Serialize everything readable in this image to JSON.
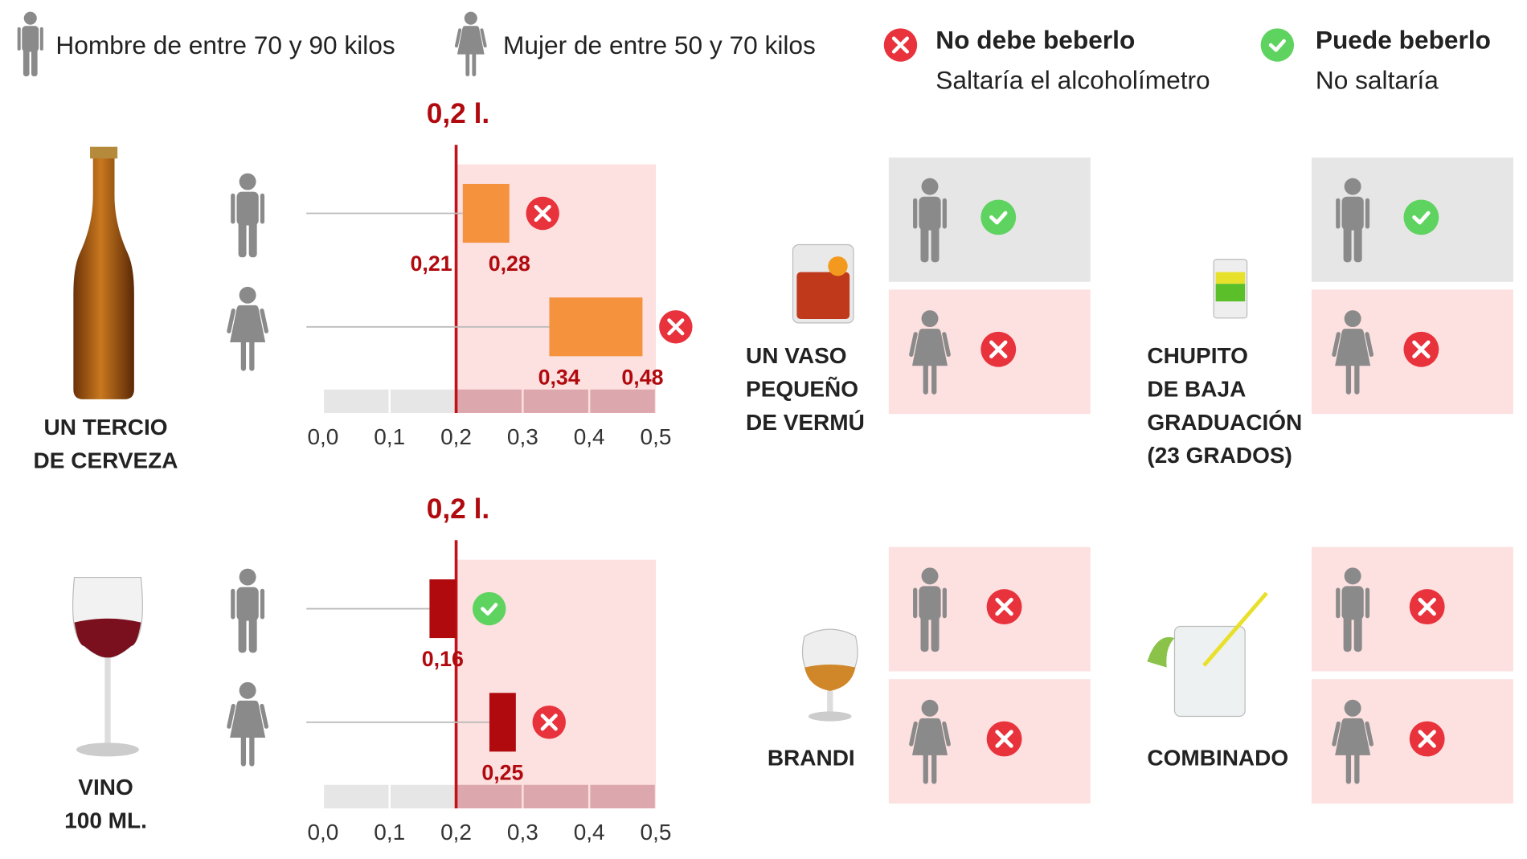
{
  "legend": {
    "man": "Hombre de entre 70 y 90 kilos",
    "woman": "Mujer de entre 50 y 70 kilos",
    "no": {
      "title": "No debe beberlo",
      "text": "Saltaría el alcoholímetro"
    },
    "yes": {
      "title": "Puede beberlo",
      "text": "No saltaría"
    }
  },
  "verdict_colors": {
    "no": "#e8323c",
    "yes": "#5fd35f"
  },
  "chart_data": [
    {
      "type": "range_bar",
      "drink": [
        "UN TERCIO",
        "DE CERVEZA"
      ],
      "limit": 0.2,
      "limit_label": "0,2 l.",
      "color": "#f5923e",
      "xlim": [
        0,
        0.5
      ],
      "xticks": [
        {
          "value": 0,
          "label": "0,0"
        },
        {
          "value": 0.1,
          "label": "0,1"
        },
        {
          "value": 0.2,
          "label": "0,2"
        },
        {
          "value": 0.3,
          "label": "0,3"
        },
        {
          "value": 0.4,
          "label": "0,4"
        },
        {
          "value": 0.5,
          "label": "0,5"
        }
      ],
      "series": [
        {
          "values": [
            0.21,
            0.28
          ],
          "value_labels": [
            "0,21",
            "0,28"
          ],
          "verdict": "no"
        },
        {
          "values": [
            0.34,
            0.48
          ],
          "value_labels": [
            "0,34",
            "0,48"
          ],
          "verdict": "no"
        }
      ]
    },
    {
      "type": "range_bar",
      "drink": [
        "VINO",
        "100 ML."
      ],
      "limit": 0.2,
      "limit_label": "0,2 l.",
      "color": "#b00a0f",
      "xlim": [
        0,
        0.5
      ],
      "xticks": [
        {
          "value": 0,
          "label": "0,0"
        },
        {
          "value": 0.1,
          "label": "0,1"
        },
        {
          "value": 0.2,
          "label": "0,2"
        },
        {
          "value": 0.3,
          "label": "0,3"
        },
        {
          "value": 0.4,
          "label": "0,4"
        },
        {
          "value": 0.5,
          "label": "0,5"
        }
      ],
      "series": [
        {
          "values": [
            0.16
          ],
          "value_labels": [
            "0,16"
          ],
          "verdict": "yes"
        },
        {
          "values": [
            0.25
          ],
          "value_labels": [
            "0,25"
          ],
          "verdict": "no"
        }
      ]
    }
  ],
  "drinks": [
    {
      "name": [
        "UN VASO",
        "PEQUEÑO",
        "DE VERMÚ"
      ],
      "man": "yes",
      "woman": "no"
    },
    {
      "name": [
        "CHUPITO",
        "DE BAJA",
        "GRADUACIÓN",
        "(23 GRADOS)"
      ],
      "man": "yes",
      "woman": "no"
    },
    {
      "name": [
        "BRANDI"
      ],
      "man": "no",
      "woman": "no"
    },
    {
      "name": [
        "COMBINADO"
      ],
      "man": "no",
      "woman": "no"
    }
  ]
}
